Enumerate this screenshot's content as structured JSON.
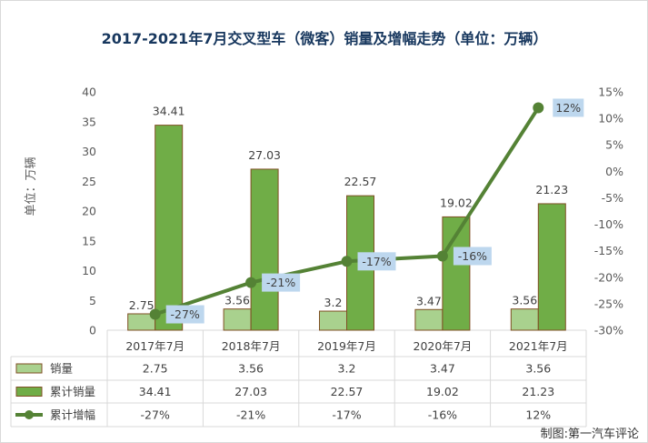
{
  "chart_data": {
    "type": "bar",
    "title": "2017-2021年7月交叉型车（微客）销量及增幅走势（单位：万辆）",
    "xlabel": "",
    "ylabel": "单位：万辆",
    "categories": [
      "2017年7月",
      "2018年7月",
      "2019年7月",
      "2020年7月",
      "2021年7月"
    ],
    "ylim": [
      0,
      40
    ],
    "y_ticks": [
      "0",
      "5",
      "10",
      "15",
      "20",
      "25",
      "30",
      "35",
      "40"
    ],
    "y2lim": [
      -30,
      15
    ],
    "y2_ticks": [
      "-30%",
      "-25%",
      "-20%",
      "-15%",
      "-10%",
      "-5%",
      "0%",
      "5%",
      "10%",
      "15%"
    ],
    "series": [
      {
        "name": "销量",
        "kind": "bar",
        "axis": "left",
        "values": [
          2.75,
          3.56,
          3.2,
          3.47,
          3.56
        ],
        "labels": [
          "2.75",
          "3.56",
          "3.2",
          "3.47",
          "3.56"
        ],
        "color": "#a9d18e"
      },
      {
        "name": "累计销量",
        "kind": "bar",
        "axis": "left",
        "values": [
          34.41,
          27.03,
          22.57,
          19.02,
          21.23
        ],
        "labels": [
          "34.41",
          "27.03",
          "22.57",
          "19.02",
          "21.23"
        ],
        "color": "#70ad47"
      },
      {
        "name": "累计增幅",
        "kind": "line",
        "axis": "right",
        "values": [
          -27,
          -21,
          -17,
          -16,
          12
        ],
        "labels": [
          "-27%",
          "-21%",
          "-17%",
          "-16%",
          "12%"
        ],
        "color": "#548235"
      }
    ],
    "grid": false,
    "legend": "data-table",
    "data_table": true
  },
  "source_note": "制图:第一汽车评论",
  "colors": {
    "title": "#17375e",
    "axis_text": "#595959",
    "table_text": "#404040",
    "bar_outline": "#7f4f24",
    "label_box": "#bdd7ee",
    "table_border": "#d9d9d9",
    "frame_border": "#d9d9d9",
    "background": "#ffffff"
  }
}
